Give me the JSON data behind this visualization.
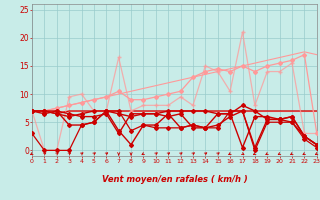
{
  "xlabel": "Vent moyen/en rafales ( km/h )",
  "xlim": [
    0,
    23
  ],
  "ylim": [
    -1,
    26
  ],
  "yticks": [
    0,
    5,
    10,
    15,
    20,
    25
  ],
  "xticks": [
    0,
    1,
    2,
    3,
    4,
    5,
    6,
    7,
    8,
    9,
    10,
    11,
    12,
    13,
    14,
    15,
    16,
    17,
    18,
    19,
    20,
    21,
    22,
    23
  ],
  "bg_color": "#c8ece8",
  "grid_color": "#99cccc",
  "series": [
    {
      "x": [
        0,
        1,
        2,
        3,
        4,
        5,
        6,
        7,
        8,
        9,
        10,
        11,
        12,
        13,
        14,
        15,
        16,
        17,
        18,
        19,
        20,
        21,
        22,
        23
      ],
      "y": [
        7,
        7,
        7,
        7,
        7,
        7,
        7,
        7,
        7,
        7,
        7,
        7,
        7,
        7,
        7,
        7,
        7,
        7,
        7,
        7,
        7,
        7,
        7,
        7
      ],
      "color": "#ff9999",
      "lw": 0.8,
      "marker": null,
      "alpha": 1.0
    },
    {
      "x": [
        0,
        1,
        2,
        3,
        4,
        5,
        6,
        7,
        8,
        9,
        10,
        11,
        12,
        13,
        14,
        15,
        16,
        17,
        18,
        19,
        20,
        21,
        22,
        23
      ],
      "y": [
        7,
        7,
        7.5,
        8,
        8.5,
        9,
        9.5,
        10,
        10.5,
        11,
        11.5,
        12,
        12.5,
        13,
        13.5,
        14,
        14.5,
        15,
        15.5,
        16,
        16.5,
        17,
        17.5,
        17
      ],
      "color": "#ff9999",
      "lw": 0.8,
      "marker": null,
      "alpha": 1.0
    },
    {
      "x": [
        0,
        1,
        2,
        3,
        4,
        5,
        6,
        7,
        8,
        9,
        10,
        11,
        12,
        13,
        14,
        15,
        16,
        17,
        18,
        19,
        20,
        21,
        22,
        23
      ],
      "y": [
        7,
        7,
        7.5,
        8,
        8.5,
        9,
        9.5,
        10.5,
        9,
        9,
        9.5,
        10,
        10.5,
        13,
        14,
        14.5,
        14,
        15,
        14,
        15,
        15.5,
        16,
        17,
        3
      ],
      "color": "#ff9999",
      "lw": 0.9,
      "marker": "D",
      "ms": 2,
      "alpha": 1.0
    },
    {
      "x": [
        0,
        1,
        2,
        3,
        4,
        5,
        6,
        7,
        8,
        9,
        10,
        11,
        12,
        13,
        14,
        15,
        16,
        17,
        18,
        19,
        20,
        21,
        22,
        23
      ],
      "y": [
        7,
        0,
        0,
        9.5,
        10,
        7,
        7,
        16.5,
        7,
        8,
        8,
        8,
        9.5,
        8,
        15,
        14,
        10.5,
        21,
        8,
        14,
        14,
        15.5,
        3,
        3
      ],
      "color": "#ff9999",
      "lw": 0.9,
      "marker": "+",
      "ms": 3,
      "alpha": 0.75
    },
    {
      "x": [
        0,
        1,
        2,
        3,
        4,
        5,
        6,
        7,
        8,
        9,
        10,
        11,
        12,
        13,
        14,
        15,
        16,
        17,
        18,
        19,
        20,
        21,
        22,
        23
      ],
      "y": [
        3,
        0,
        0,
        0,
        4.5,
        5,
        7,
        7,
        3.5,
        4.5,
        4,
        4,
        4,
        4.5,
        4,
        4,
        7,
        7,
        0,
        5,
        5,
        5,
        2,
        0.5
      ],
      "color": "#cc0000",
      "lw": 0.9,
      "marker": "D",
      "ms": 2,
      "alpha": 1.0
    },
    {
      "x": [
        0,
        1,
        2,
        3,
        4,
        5,
        6,
        7,
        8,
        9,
        10,
        11,
        12,
        13,
        14,
        15,
        16,
        17,
        18,
        19,
        20,
        21,
        22,
        23
      ],
      "y": [
        7,
        7,
        6.5,
        7,
        7,
        7,
        7,
        7,
        7,
        7,
        7,
        7,
        7,
        7,
        7,
        7,
        7,
        7,
        7,
        7,
        7,
        7,
        7,
        7
      ],
      "color": "#cc0000",
      "lw": 0.9,
      "marker": null,
      "alpha": 1.0
    },
    {
      "x": [
        0,
        1,
        2,
        3,
        4,
        5,
        6,
        7,
        8,
        9,
        10,
        11,
        12,
        13,
        14,
        15,
        16,
        17,
        18,
        19,
        20,
        21,
        22,
        23
      ],
      "y": [
        7,
        7,
        6.5,
        6,
        6.5,
        7,
        7,
        6.5,
        6,
        6.5,
        6.5,
        7,
        7,
        7,
        7,
        6.5,
        6.5,
        8,
        7,
        5.5,
        5.5,
        5,
        2.5,
        1
      ],
      "color": "#cc0000",
      "lw": 1.0,
      "marker": "D",
      "ms": 2,
      "alpha": 1.0
    },
    {
      "x": [
        0,
        1,
        2,
        3,
        4,
        5,
        6,
        7,
        8,
        9,
        10,
        11,
        12,
        13,
        14,
        15,
        16,
        17,
        18,
        19,
        20,
        21,
        22,
        23
      ],
      "y": [
        7,
        6.5,
        7,
        6.5,
        6,
        6,
        6.5,
        3,
        6.5,
        6.5,
        6.5,
        6,
        6.5,
        4,
        4,
        6.5,
        6.5,
        0.5,
        6,
        6,
        5.5,
        6,
        2.5,
        1
      ],
      "color": "#cc0000",
      "lw": 1.0,
      "marker": "D",
      "ms": 2,
      "alpha": 1.0
    },
    {
      "x": [
        0,
        1,
        2,
        3,
        4,
        5,
        6,
        7,
        8,
        9,
        10,
        11,
        12,
        13,
        14,
        15,
        16,
        17,
        18,
        19,
        20,
        21,
        22,
        23
      ],
      "y": [
        7,
        7,
        7,
        4.5,
        4.5,
        5,
        7,
        3.5,
        1,
        4.5,
        4.5,
        6.5,
        4,
        4.5,
        4,
        4.5,
        6,
        7,
        0.5,
        5.5,
        5.5,
        6,
        2.5,
        1
      ],
      "color": "#cc0000",
      "lw": 1.0,
      "marker": "D",
      "ms": 2,
      "alpha": 1.0
    }
  ],
  "arrows_x": [
    0,
    1,
    2,
    3,
    4,
    5,
    6,
    7,
    8,
    9,
    10,
    11,
    12,
    13,
    14,
    15,
    16,
    17,
    18,
    19,
    20,
    21,
    22,
    23
  ],
  "arrows_angles": [
    225,
    45,
    45,
    45,
    45,
    45,
    45,
    180,
    180,
    225,
    45,
    45,
    45,
    45,
    45,
    45,
    225,
    135,
    225,
    225,
    225,
    225,
    225,
    225
  ],
  "arrow_color": "#cc0000"
}
